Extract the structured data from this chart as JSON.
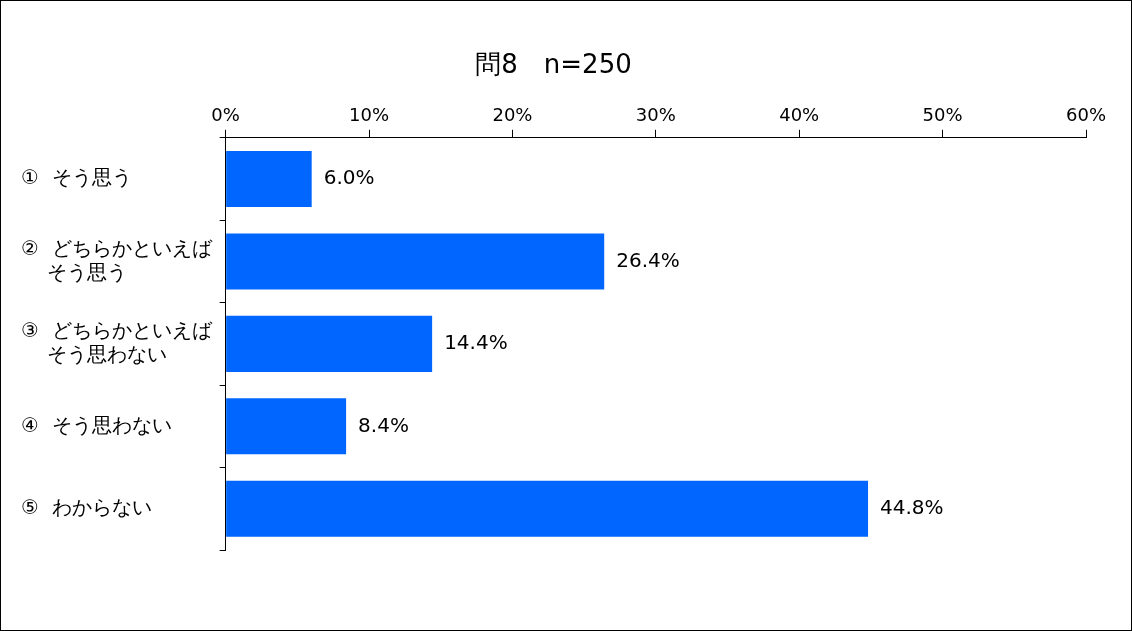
{
  "chart_data": {
    "type": "bar",
    "orientation": "horizontal",
    "title": "問8　n=250",
    "categories": [
      "①  そう思う",
      "②  どちらかといえばそう思う",
      "③  どちらかといえばそう思わない",
      "④  そう思わない",
      "⑤  わからない"
    ],
    "values": [
      6.0,
      26.4,
      14.4,
      8.4,
      44.8
    ],
    "value_labels": [
      "6.0%",
      "26.4%",
      "14.4%",
      "8.4%",
      "44.8%"
    ],
    "color": "#0066ff",
    "xlim": [
      0,
      60
    ],
    "xticks": [
      {
        "value": 0,
        "label": "0%"
      },
      {
        "value": 10,
        "label": "10%"
      },
      {
        "value": 20,
        "label": "20%"
      },
      {
        "value": 30,
        "label": "30%"
      },
      {
        "value": 40,
        "label": "40%"
      },
      {
        "value": 50,
        "label": "50%"
      },
      {
        "value": 60,
        "label": "60%"
      }
    ],
    "grid": false,
    "legend": false
  }
}
